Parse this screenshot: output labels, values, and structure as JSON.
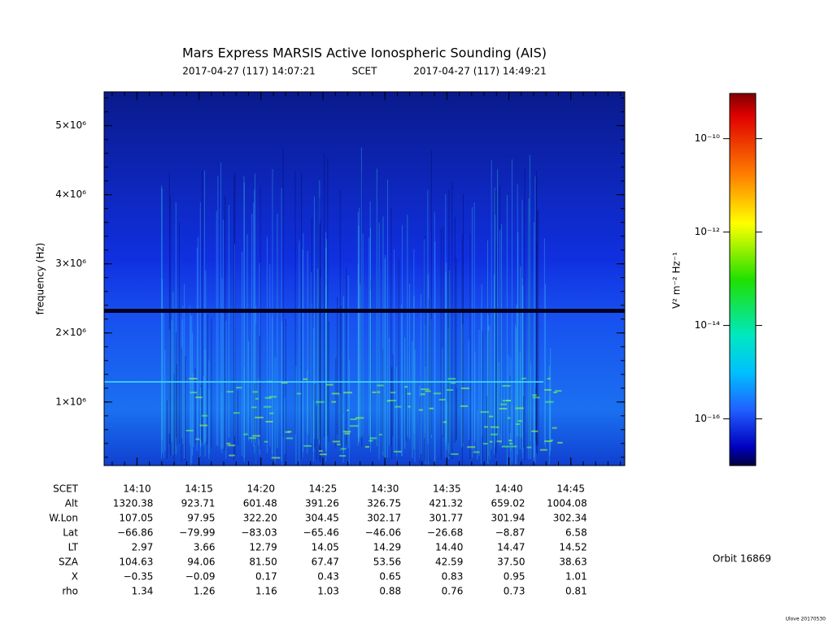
{
  "chart_data": {
    "type": "spectrogram",
    "title": "Mars Express MARSIS Active Ionospheric Sounding (AIS)",
    "time_label": "SCET",
    "xlim": [
      "2017-04-27 (117) 14:07:21",
      "2017-04-27 (117) 14:49:21"
    ],
    "xticks": [
      "14:10",
      "14:15",
      "14:20",
      "14:25",
      "14:30",
      "14:35",
      "14:40",
      "14:45"
    ],
    "ylabel": "frequency (Hz)",
    "ylim": [
      80000,
      5490000
    ],
    "yticks": [
      {
        "value": 1000000,
        "label": "1×10⁶"
      },
      {
        "value": 2000000,
        "label": "2×10⁶"
      },
      {
        "value": 3000000,
        "label": "3×10⁶"
      },
      {
        "value": 4000000,
        "label": "4×10⁶"
      },
      {
        "value": 5000000,
        "label": "5×10⁶"
      }
    ],
    "colorbar": {
      "label": "V² m⁻² Hz⁻¹",
      "log": true,
      "lim": [
        1e-17,
        9.3e-10
      ],
      "ticks": [
        {
          "value": 1e-10,
          "label": "10⁻¹⁰"
        },
        {
          "value": 1e-12,
          "label": "10⁻¹²"
        },
        {
          "value": 1e-14,
          "label": "10⁻¹⁴"
        },
        {
          "value": 1e-16,
          "label": "10⁻¹⁶"
        }
      ]
    }
  },
  "table": {
    "rows": [
      {
        "label": "Alt",
        "values": [
          "1320.38",
          "923.71",
          "601.48",
          "391.26",
          "326.75",
          "421.32",
          "659.02",
          "1004.08"
        ]
      },
      {
        "label": "W.Lon",
        "values": [
          "107.05",
          "97.95",
          "322.20",
          "304.45",
          "302.17",
          "301.77",
          "301.94",
          "302.34"
        ]
      },
      {
        "label": "Lat",
        "values": [
          "−66.86",
          "−79.99",
          "−83.03",
          "−65.46",
          "−46.06",
          "−26.68",
          "−8.87",
          "6.58"
        ]
      },
      {
        "label": "LT",
        "values": [
          "2.97",
          "3.66",
          "12.79",
          "14.05",
          "14.29",
          "14.40",
          "14.47",
          "14.52"
        ]
      },
      {
        "label": "SZA",
        "values": [
          "104.63",
          "94.06",
          "81.50",
          "67.47",
          "53.56",
          "42.59",
          "37.50",
          "38.63"
        ]
      },
      {
        "label": "X",
        "values": [
          "−0.35",
          "−0.09",
          "0.17",
          "0.43",
          "0.65",
          "0.83",
          "0.95",
          "1.01"
        ]
      },
      {
        "label": "rho",
        "values": [
          "1.34",
          "1.26",
          "1.16",
          "1.03",
          "0.88",
          "0.76",
          "0.73",
          "0.81"
        ]
      }
    ]
  },
  "orbit": "Orbit 16869",
  "footer": "Ulove 20170530"
}
